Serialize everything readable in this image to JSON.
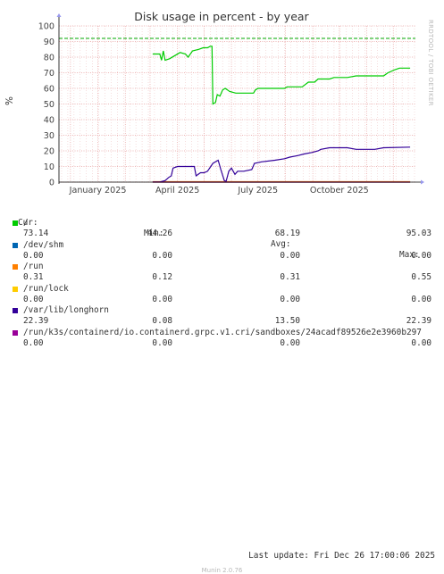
{
  "chart_data": {
    "type": "line",
    "title": "Disk usage in percent - by year",
    "ylabel": "%",
    "xlabel": "",
    "ylim": [
      0,
      100
    ],
    "yticks": [
      0,
      10,
      20,
      30,
      40,
      50,
      60,
      70,
      80,
      90,
      100
    ],
    "xticks": [
      {
        "date": "2025-01-01",
        "label": "January 2025"
      },
      {
        "date": "2025-04-01",
        "label": "April 2025"
      },
      {
        "date": "2025-07-01",
        "label": "July 2025"
      },
      {
        "date": "2025-10-01",
        "label": "October 2025"
      }
    ],
    "x_range": [
      "2024-11-18",
      "2025-12-26"
    ],
    "grid": true,
    "warning_line": {
      "value": 92,
      "color": "#00aa00"
    },
    "series": [
      {
        "name": "/",
        "color": "#00cc00",
        "points": [
          [
            "2025-03-04",
            82
          ],
          [
            "2025-03-12",
            82
          ],
          [
            "2025-03-14",
            78
          ],
          [
            "2025-03-16",
            84
          ],
          [
            "2025-03-18",
            78
          ],
          [
            "2025-03-23",
            79
          ],
          [
            "2025-03-29",
            81
          ],
          [
            "2025-04-04",
            83
          ],
          [
            "2025-04-10",
            82
          ],
          [
            "2025-04-13",
            80
          ],
          [
            "2025-04-18",
            84
          ],
          [
            "2025-04-25",
            85
          ],
          [
            "2025-04-30",
            86
          ],
          [
            "2025-05-05",
            86
          ],
          [
            "2025-05-08",
            87
          ],
          [
            "2025-05-10",
            87
          ],
          [
            "2025-05-11",
            50
          ],
          [
            "2025-05-14",
            51
          ],
          [
            "2025-05-16",
            56
          ],
          [
            "2025-05-19",
            55
          ],
          [
            "2025-05-22",
            59
          ],
          [
            "2025-05-25",
            60
          ],
          [
            "2025-05-30",
            58
          ],
          [
            "2025-06-06",
            57
          ],
          [
            "2025-06-14",
            57
          ],
          [
            "2025-06-20",
            57
          ],
          [
            "2025-06-26",
            57
          ],
          [
            "2025-06-28",
            59
          ],
          [
            "2025-07-01",
            60
          ],
          [
            "2025-07-15",
            60
          ],
          [
            "2025-07-31",
            60
          ],
          [
            "2025-08-03",
            61
          ],
          [
            "2025-08-20",
            61
          ],
          [
            "2025-08-27",
            64
          ],
          [
            "2025-09-03",
            64
          ],
          [
            "2025-09-07",
            66
          ],
          [
            "2025-09-20",
            66
          ],
          [
            "2025-09-25",
            67
          ],
          [
            "2025-10-10",
            67
          ],
          [
            "2025-10-20",
            68
          ],
          [
            "2025-11-01",
            68
          ],
          [
            "2025-11-20",
            68
          ],
          [
            "2025-11-25",
            70
          ],
          [
            "2025-12-03",
            72
          ],
          [
            "2025-12-08",
            73
          ],
          [
            "2025-12-20",
            73
          ]
        ]
      },
      {
        "name": "/dev/shm",
        "color": "#0066b3",
        "points": [
          [
            "2025-03-04",
            0
          ],
          [
            "2025-12-20",
            0
          ]
        ]
      },
      {
        "name": "/run",
        "color": "#ff8000",
        "points": [
          [
            "2025-03-04",
            0.31
          ],
          [
            "2025-12-20",
            0.31
          ]
        ]
      },
      {
        "name": "/run/lock",
        "color": "#ffcc00",
        "points": [
          [
            "2025-03-04",
            0
          ],
          [
            "2025-12-20",
            0
          ]
        ]
      },
      {
        "name": "/var/lib/longhorn",
        "color": "#330099",
        "points": [
          [
            "2025-03-04",
            0.1
          ],
          [
            "2025-03-12",
            0.1
          ],
          [
            "2025-03-18",
            1
          ],
          [
            "2025-03-22",
            3
          ],
          [
            "2025-03-25",
            4
          ],
          [
            "2025-03-27",
            9
          ],
          [
            "2025-04-01",
            10
          ],
          [
            "2025-04-20",
            10
          ],
          [
            "2025-04-22",
            4
          ],
          [
            "2025-04-27",
            6
          ],
          [
            "2025-05-01",
            6
          ],
          [
            "2025-05-05",
            7
          ],
          [
            "2025-05-11",
            12
          ],
          [
            "2025-05-17",
            14
          ],
          [
            "2025-05-20",
            8
          ],
          [
            "2025-05-24",
            1
          ],
          [
            "2025-05-26",
            0.5
          ],
          [
            "2025-05-29",
            7
          ],
          [
            "2025-06-01",
            9
          ],
          [
            "2025-06-05",
            5
          ],
          [
            "2025-06-08",
            7
          ],
          [
            "2025-06-15",
            7
          ],
          [
            "2025-06-24",
            8
          ],
          [
            "2025-06-27",
            12
          ],
          [
            "2025-07-05",
            13
          ],
          [
            "2025-07-20",
            14
          ],
          [
            "2025-07-31",
            15
          ],
          [
            "2025-08-06",
            16
          ],
          [
            "2025-08-15",
            17
          ],
          [
            "2025-08-22",
            18
          ],
          [
            "2025-08-31",
            19
          ],
          [
            "2025-09-07",
            20
          ],
          [
            "2025-09-10",
            21
          ],
          [
            "2025-09-20",
            22
          ],
          [
            "2025-10-10",
            22
          ],
          [
            "2025-10-20",
            21
          ],
          [
            "2025-11-10",
            21
          ],
          [
            "2025-11-20",
            22
          ],
          [
            "2025-12-20",
            22.4
          ]
        ]
      },
      {
        "name": "/run/k3s/containerd/io.containerd.grpc.v1.cri/sandboxes/24acadf89526e2e3960b297",
        "color": "#990099",
        "points": [
          [
            "2025-03-04",
            0
          ],
          [
            "2025-12-20",
            0
          ]
        ]
      }
    ]
  },
  "legend": {
    "headers": {
      "cur": "Cur:",
      "min": "Min:",
      "avg": "Avg:",
      "max": "Max:"
    },
    "rows": [
      {
        "name": "/",
        "color": "#00cc00",
        "cur": "73.14",
        "min": "44.26",
        "avg": "68.19",
        "max": "95.03"
      },
      {
        "name": "/dev/shm",
        "color": "#0066b3",
        "cur": "0.00",
        "min": "0.00",
        "avg": "0.00",
        "max": "0.00"
      },
      {
        "name": "/run",
        "color": "#ff8000",
        "cur": "0.31",
        "min": "0.12",
        "avg": "0.31",
        "max": "0.55"
      },
      {
        "name": "/run/lock",
        "color": "#ffcc00",
        "cur": "0.00",
        "min": "0.00",
        "avg": "0.00",
        "max": "0.00"
      },
      {
        "name": "/var/lib/longhorn",
        "color": "#330099",
        "cur": "22.39",
        "min": "0.08",
        "avg": "13.50",
        "max": "22.39"
      },
      {
        "name": "/run/k3s/containerd/io.containerd.grpc.v1.cri/sandboxes/24acadf89526e2e3960b297",
        "color": "#990099",
        "cur": "0.00",
        "min": "0.00",
        "avg": "0.00",
        "max": "0.00"
      }
    ]
  },
  "footer": {
    "last_update": "Last update: Fri Dec 26 17:00:06 2025",
    "version": "Munin 2.0.76"
  },
  "side_label": "RRDTOOL / TOBI OETIKER"
}
